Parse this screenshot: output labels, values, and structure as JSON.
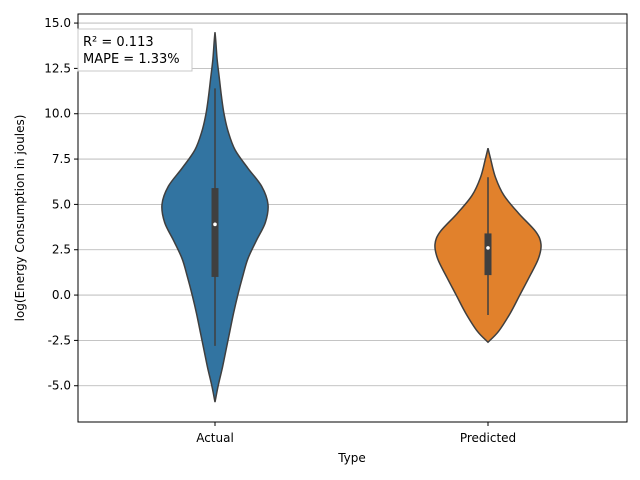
{
  "chart_data": {
    "type": "violin",
    "title": "",
    "xlabel": "Type",
    "ylabel": "log(Energy Consumption in joules)",
    "ylim": [
      -7,
      15.5
    ],
    "yticks": [
      "-5.0",
      "-2.5",
      "0.0",
      "2.5",
      "5.0",
      "7.5",
      "10.0",
      "12.5",
      "15.0"
    ],
    "grid": "horizontal",
    "categories": [
      "Actual",
      "Predicted"
    ],
    "series": [
      {
        "category": "Actual",
        "color": "#3274a1",
        "q1": 1.0,
        "median": 3.9,
        "q3": 5.9,
        "whisker_low": -2.8,
        "whisker_high": 11.4,
        "density": [
          [
            -5.9,
            0.0
          ],
          [
            -5.0,
            0.06
          ],
          [
            -4.0,
            0.14
          ],
          [
            -3.0,
            0.21
          ],
          [
            -2.0,
            0.28
          ],
          [
            -1.0,
            0.35
          ],
          [
            0.0,
            0.43
          ],
          [
            1.0,
            0.52
          ],
          [
            2.0,
            0.62
          ],
          [
            3.0,
            0.78
          ],
          [
            4.0,
            0.95
          ],
          [
            5.0,
            1.0
          ],
          [
            6.0,
            0.88
          ],
          [
            7.0,
            0.62
          ],
          [
            8.0,
            0.38
          ],
          [
            9.0,
            0.25
          ],
          [
            10.0,
            0.17
          ],
          [
            11.0,
            0.12
          ],
          [
            12.0,
            0.08
          ],
          [
            13.0,
            0.04
          ],
          [
            14.0,
            0.015
          ],
          [
            14.5,
            0.0
          ]
        ]
      },
      {
        "category": "Predicted",
        "color": "#e1812c",
        "q1": 1.1,
        "median": 2.6,
        "q3": 3.4,
        "whisker_low": -1.1,
        "whisker_high": 6.5,
        "density": [
          [
            -2.6,
            0.0
          ],
          [
            -2.0,
            0.2
          ],
          [
            -1.0,
            0.42
          ],
          [
            0.0,
            0.6
          ],
          [
            1.0,
            0.78
          ],
          [
            2.0,
            0.95
          ],
          [
            2.8,
            1.0
          ],
          [
            3.5,
            0.9
          ],
          [
            4.5,
            0.58
          ],
          [
            5.5,
            0.3
          ],
          [
            6.5,
            0.14
          ],
          [
            7.5,
            0.05
          ],
          [
            8.1,
            0.0
          ]
        ]
      }
    ],
    "annotation": [
      "R² = 0.113",
      "MAPE = 1.33%"
    ],
    "annotation_position": "top-left"
  }
}
